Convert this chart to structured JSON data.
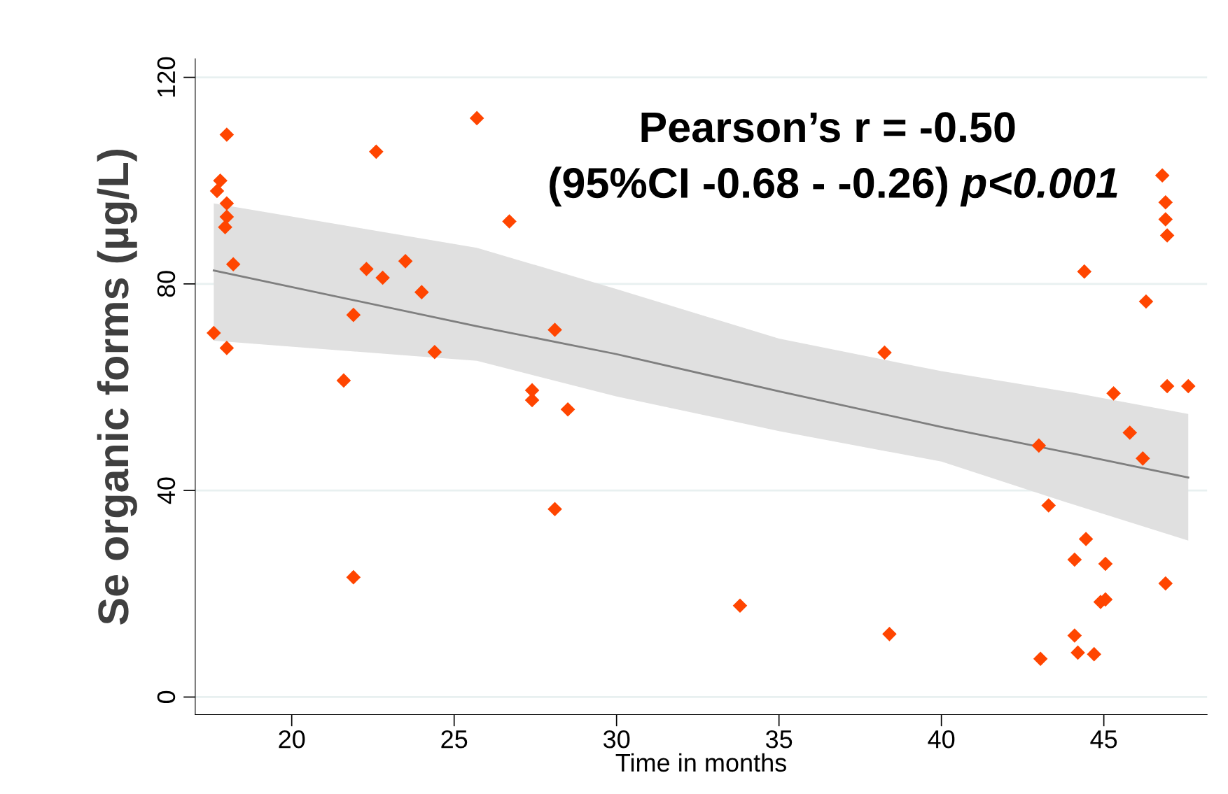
{
  "chart_data": {
    "type": "scatter",
    "xlabel": "Time in months",
    "ylabel": "Se organic forms (µg/L)",
    "xlim": [
      17.03,
      48.18
    ],
    "ylim": [
      -3.4,
      123.6
    ],
    "xticks": [
      20,
      25,
      30,
      35,
      40,
      45
    ],
    "yticks": [
      0,
      40,
      80,
      120
    ],
    "grid": "y",
    "marker": "diamond",
    "annotations": [
      "Pearson’s r = -0.50",
      "(95%CI -0.68 - -0.26) ",
      "p<0.001"
    ],
    "series": [
      {
        "type": "line",
        "marker": "none",
        "color": "#7f7f7f",
        "x": [
          17.6,
          25.7,
          30,
          35,
          40,
          44,
          47.6
        ],
        "values": [
          82.6,
          71.8,
          66.4,
          59.2,
          52.3,
          47.2,
          42.5
        ],
        "lower": [
          69,
          65.1,
          58.2,
          51.5,
          45.6,
          37.4,
          30.3
        ],
        "upper": [
          95.6,
          87.0,
          79,
          69.4,
          63.1,
          59.0,
          54.8
        ]
      },
      {
        "color": "#ff4500",
        "x": [
          17.6,
          17.7,
          17.8,
          17.95,
          18.0,
          18.0,
          18.0,
          18.0,
          18.2,
          21.6,
          21.9,
          21.9,
          22.3,
          22.6,
          22.8,
          23.5,
          24.0,
          24.4,
          25.7,
          26.7,
          27.4,
          27.4,
          28.1,
          28.1,
          28.5,
          33.8,
          38.25,
          38.4,
          43.0,
          43.05,
          43.3,
          44.1,
          44.1,
          44.2,
          44.4,
          44.45,
          44.7,
          44.9,
          45.05,
          45.05,
          45.3,
          45.8,
          46.2,
          46.3,
          46.8,
          46.9,
          46.9,
          46.95,
          46.95,
          46.9,
          47.6
        ],
        "values": [
          70.5,
          98.0,
          100.0,
          91.0,
          93.0,
          95.6,
          108.9,
          67.6,
          83.8,
          61.3,
          74.0,
          23.2,
          82.9,
          105.6,
          81.2,
          84.4,
          78.4,
          66.8,
          112.1,
          92.1,
          57.5,
          59.4,
          71.1,
          36.4,
          55.7,
          17.7,
          66.7,
          12.2,
          48.7,
          7.4,
          37.1,
          26.6,
          11.9,
          8.6,
          82.4,
          30.6,
          8.3,
          18.4,
          25.8,
          18.9,
          58.8,
          51.2,
          46.2,
          76.6,
          101.0,
          95.8,
          92.5,
          89.4,
          60.2,
          22.0,
          60.2
        ]
      }
    ]
  }
}
